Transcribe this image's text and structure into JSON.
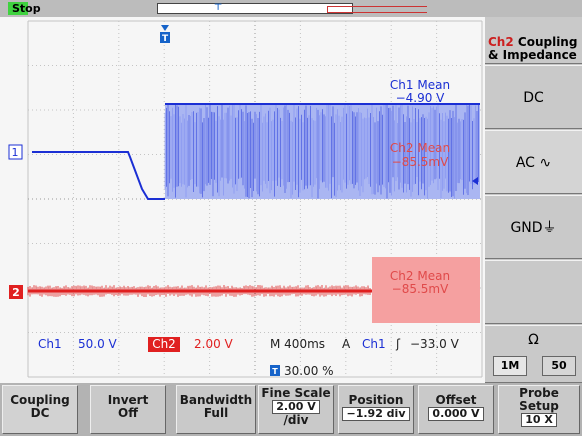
{
  "topbar": {
    "run_state": "Stop"
  },
  "readouts": {
    "ch1_mean_title": "Ch1 Mean",
    "ch1_mean_value": "−4.90 V",
    "ch2_mean_title_a": "Ch2 Mean",
    "ch2_mean_value_a": "−85.5mV",
    "ch2_mean_title_b": "Ch2 Mean",
    "ch2_mean_value_b": "−85.5mV",
    "ch1_scale_label": "Ch1",
    "ch1_scale": "50.0 V",
    "ch2_scale_label": "Ch2",
    "ch2_scale": "2.00 V",
    "timebase": "M 400ms",
    "trigger_mode": "A",
    "trigger_source": "Ch1",
    "trigger_slope": "ʃ",
    "trigger_level": "−33.0 V",
    "trigger_pos_marker": "T",
    "trigger_position": "30.00 %",
    "ch1_marker": "1",
    "ch2_marker": "2"
  },
  "side_menu": {
    "title_ch": "Ch2",
    "title_text": "Coupling",
    "title_text2": "& Impedance",
    "items": [
      "DC",
      "AC ∿",
      "GND⏚",
      ""
    ],
    "ohm_symbol": "Ω",
    "impedance_1m": "1M",
    "impedance_50": "50"
  },
  "bottom_menu": {
    "coupling_l1": "Coupling",
    "coupling_l2": "DC",
    "invert_l1": "Invert",
    "invert_l2": "Off",
    "bandwidth_l1": "Bandwidth",
    "bandwidth_l2": "Full",
    "finescale_l1": "Fine Scale",
    "finescale_val": "2.00 V",
    "finescale_unit": "/div",
    "position_l1": "Position",
    "position_val": "−1.92 div",
    "offset_l1": "Offset",
    "offset_val": "0.000 V",
    "probe_l1": "Probe",
    "probe_l2": "Setup",
    "probe_val": "10 X"
  },
  "colors": {
    "ch1": "#1b2fd4",
    "ch2": "#e02020",
    "ch2_light": "#f5a0a0"
  }
}
